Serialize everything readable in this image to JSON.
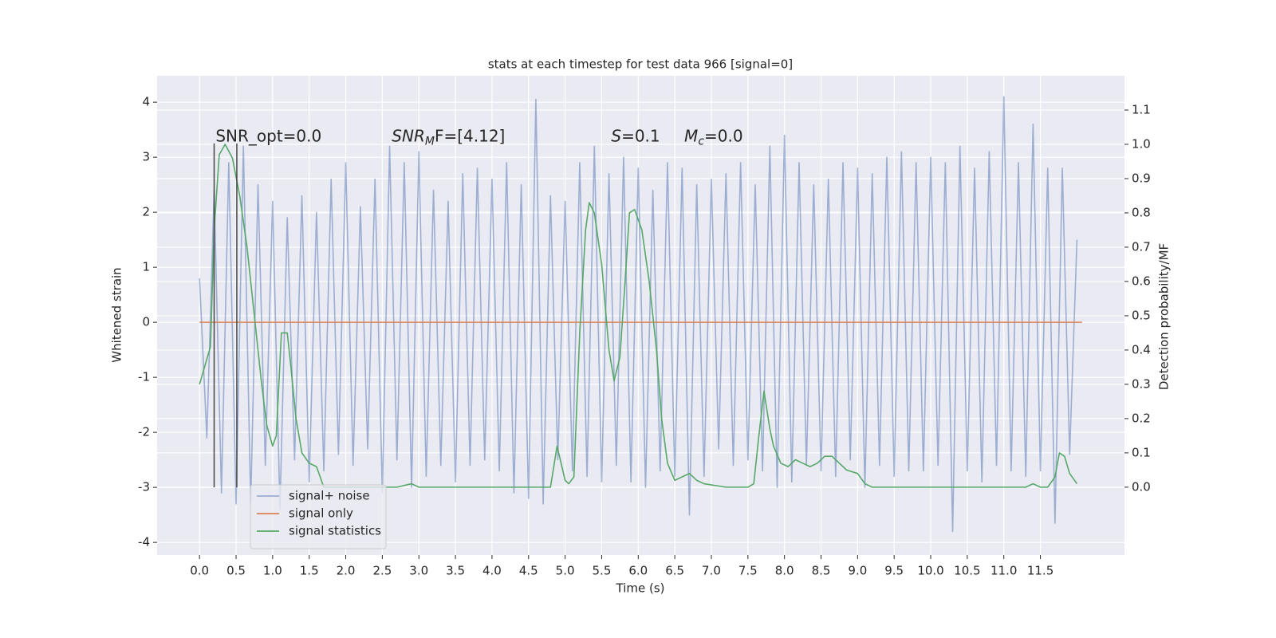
{
  "chart_data": {
    "type": "line",
    "title": "stats at each timestep for test data 966 [signal=0]",
    "xlabel": "Time (s)",
    "ylabel": "Whitened strain",
    "y2label": "Detection probability/MF",
    "xlim": [
      -0.58,
      12.65
    ],
    "ylim": [
      -4.23,
      4.48
    ],
    "y2lim": [
      -0.198,
      1.2
    ],
    "xticks": [
      {
        "value": 0,
        "label": "0.0"
      },
      {
        "value": 0.5,
        "label": "0.5"
      },
      {
        "value": 1,
        "label": "1.0"
      },
      {
        "value": 1.5,
        "label": "1.5"
      },
      {
        "value": 2,
        "label": "2.0"
      },
      {
        "value": 2.5,
        "label": "2.5"
      },
      {
        "value": 3,
        "label": "3.0"
      },
      {
        "value": 3.5,
        "label": "3.5"
      },
      {
        "value": 4,
        "label": "4.0"
      },
      {
        "value": 4.5,
        "label": "4.5"
      },
      {
        "value": 5,
        "label": "5.0"
      },
      {
        "value": 5.5,
        "label": "5.5"
      },
      {
        "value": 6,
        "label": "6.0"
      },
      {
        "value": 6.5,
        "label": "6.5"
      },
      {
        "value": 7,
        "label": "7.0"
      },
      {
        "value": 7.5,
        "label": "7.5"
      },
      {
        "value": 8,
        "label": "8.0"
      },
      {
        "value": 8.5,
        "label": "8.5"
      },
      {
        "value": 9,
        "label": "9.0"
      },
      {
        "value": 9.5,
        "label": "9.5"
      },
      {
        "value": 10,
        "label": "10.0"
      },
      {
        "value": 10.5,
        "label": "10.5"
      },
      {
        "value": 11,
        "label": "11.0"
      },
      {
        "value": 11.5,
        "label": "11.5"
      }
    ],
    "yticks": [
      -4,
      -3,
      -2,
      -1,
      0,
      1,
      2,
      3,
      4
    ],
    "y2ticks": [
      {
        "value": 0,
        "label": "0.0"
      },
      {
        "value": 0.1,
        "label": "0.1"
      },
      {
        "value": 0.2,
        "label": "0.2"
      },
      {
        "value": 0.3,
        "label": "0.3"
      },
      {
        "value": 0.4,
        "label": "0.4"
      },
      {
        "value": 0.5,
        "label": "0.5"
      },
      {
        "value": 0.6,
        "label": "0.6"
      },
      {
        "value": 0.7,
        "label": "0.7"
      },
      {
        "value": 0.8,
        "label": "0.8"
      },
      {
        "value": 0.9,
        "label": "0.9"
      },
      {
        "value": 1,
        "label": "1.0"
      },
      {
        "value": 1.1,
        "label": "1.1"
      }
    ],
    "grid": true,
    "legend": "lower left",
    "series": [
      {
        "name": "signal+ noise",
        "color": "#4c72b0",
        "opacity": 0.5,
        "x": [
          0,
          0.1,
          0.2,
          0.3,
          0.4,
          0.5,
          0.6,
          0.7,
          0.8,
          0.9,
          1,
          1.1,
          1.2,
          1.3,
          1.4,
          1.5,
          1.6,
          1.7,
          1.8,
          1.9,
          2,
          2.1,
          2.2,
          2.3,
          2.4,
          2.5,
          2.6,
          2.7,
          2.8,
          2.9,
          3,
          3.1,
          3.2,
          3.3,
          3.4,
          3.5,
          3.6,
          3.7,
          3.8,
          3.9,
          4,
          4.1,
          4.2,
          4.3,
          4.4,
          4.5,
          4.6,
          4.7,
          4.8,
          4.9,
          5,
          5.1,
          5.2,
          5.3,
          5.4,
          5.5,
          5.6,
          5.7,
          5.8,
          5.9,
          6,
          6.1,
          6.2,
          6.3,
          6.4,
          6.5,
          6.6,
          6.7,
          6.8,
          6.9,
          7,
          7.1,
          7.2,
          7.3,
          7.4,
          7.5,
          7.6,
          7.7,
          7.8,
          7.9,
          8,
          8.1,
          8.2,
          8.3,
          8.4,
          8.5,
          8.6,
          8.7,
          8.8,
          8.9,
          9,
          9.1,
          9.2,
          9.3,
          9.4,
          9.5,
          9.6,
          9.7,
          9.8,
          9.9,
          10,
          10.1,
          10.2,
          10.3,
          10.4,
          10.5,
          10.6,
          10.7,
          10.8,
          10.9,
          11,
          11.1,
          11.2,
          11.3,
          11.4,
          11.5,
          11.6,
          11.7,
          11.8,
          11.9,
          12
        ],
        "values": [
          0.8,
          -2.1,
          2.4,
          -3.1,
          2.9,
          -3.3,
          3.2,
          -3.3,
          2.5,
          -2.6,
          2.2,
          -3.4,
          1.9,
          -2.5,
          2.3,
          -2.9,
          2.0,
          -2.7,
          2.6,
          -2.4,
          2.9,
          -2.6,
          2.1,
          -2.3,
          2.6,
          -3.1,
          3.2,
          -2.5,
          2.9,
          -3.0,
          3.1,
          -2.8,
          2.4,
          -2.6,
          2.2,
          -2.9,
          2.7,
          -2.6,
          2.8,
          -2.5,
          2.6,
          -2.7,
          2.9,
          -3.1,
          2.5,
          -3.2,
          4.05,
          -3.3,
          2.3,
          -2.5,
          2.2,
          -2.7,
          2.9,
          -2.8,
          3.2,
          -2.9,
          2.7,
          -2.6,
          3.0,
          -2.9,
          2.8,
          -3.0,
          2.4,
          -2.7,
          2.9,
          -2.8,
          2.8,
          -3.5,
          2.5,
          -2.8,
          2.6,
          -2.3,
          2.7,
          -2.6,
          2.9,
          -2.5,
          2.5,
          -2.7,
          3.2,
          -3.0,
          3.4,
          -2.9,
          2.9,
          -2.6,
          2.5,
          -2.7,
          2.6,
          -2.8,
          2.9,
          -2.5,
          2.8,
          -3.0,
          2.7,
          -2.6,
          3.0,
          -2.8,
          3.1,
          -2.7,
          2.9,
          -2.7,
          3.0,
          -2.6,
          2.9,
          -3.8,
          3.2,
          -2.7,
          2.8,
          -2.9,
          3.1,
          -2.6,
          4.1,
          -2.7,
          2.9,
          -2.8,
          3.6,
          -2.7,
          2.8,
          -3.65,
          2.8,
          -2.4,
          1.5
        ]
      },
      {
        "name": "signal only",
        "color": "#dd8452",
        "opacity": 1,
        "x": [
          0,
          12.07
        ],
        "values": [
          0,
          0
        ]
      },
      {
        "name": "signal statistics",
        "color": "#55a868",
        "opacity": 1,
        "axis": "y2",
        "x": [
          0,
          0.15,
          0.2,
          0.27,
          0.35,
          0.45,
          0.55,
          0.65,
          0.75,
          0.85,
          0.92,
          1,
          1.05,
          1.12,
          1.2,
          1.25,
          1.32,
          1.4,
          1.5,
          1.6,
          1.7,
          2,
          2.7,
          2.9,
          3,
          4,
          4.4,
          4.6,
          4.8,
          4.89,
          5,
          5.05,
          5.12,
          5.2,
          5.28,
          5.33,
          5.4,
          5.5,
          5.6,
          5.67,
          5.75,
          5.82,
          5.88,
          5.95,
          6.05,
          6.15,
          6.25,
          6.32,
          6.4,
          6.5,
          6.6,
          6.7,
          6.8,
          6.9,
          7.2,
          7.5,
          7.58,
          7.65,
          7.72,
          7.8,
          7.85,
          7.95,
          8.05,
          8.15,
          8.25,
          8.35,
          8.45,
          8.55,
          8.65,
          8.75,
          8.85,
          9,
          9.1,
          9.2,
          11.3,
          11.4,
          11.5,
          11.6,
          11.7,
          11.76,
          11.83,
          11.9,
          12
        ],
        "values": [
          0.3,
          0.41,
          0.75,
          0.97,
          1.0,
          0.96,
          0.85,
          0.7,
          0.5,
          0.3,
          0.18,
          0.12,
          0.15,
          0.45,
          0.45,
          0.35,
          0.2,
          0.1,
          0.07,
          0.06,
          0.0,
          0.0,
          0.0,
          0.01,
          0.0,
          0.0,
          0.0,
          0.0,
          0.0,
          0.12,
          0.02,
          0.01,
          0.03,
          0.45,
          0.75,
          0.83,
          0.8,
          0.65,
          0.4,
          0.31,
          0.38,
          0.6,
          0.8,
          0.81,
          0.75,
          0.6,
          0.4,
          0.2,
          0.07,
          0.02,
          0.03,
          0.04,
          0.02,
          0.01,
          0.0,
          0.0,
          0.01,
          0.15,
          0.28,
          0.17,
          0.12,
          0.07,
          0.06,
          0.08,
          0.07,
          0.06,
          0.07,
          0.09,
          0.09,
          0.07,
          0.05,
          0.04,
          0.01,
          0.0,
          0.0,
          0.01,
          0.0,
          0.0,
          0.03,
          0.1,
          0.09,
          0.04,
          0.01
        ]
      }
    ],
    "vlines": [
      {
        "x": 0.2,
        "ymin": -3,
        "ymax": 3.25
      },
      {
        "x": 0.51,
        "ymin": -3,
        "ymax": 3.25
      }
    ],
    "annotations": [
      {
        "x": 0.22,
        "y": 3.2,
        "parts": [
          {
            "t": "SNR_opt=0.0"
          }
        ]
      },
      {
        "x": 2.63,
        "y": 3.2,
        "parts": [
          {
            "t": "SNR",
            "style": "italic"
          },
          {
            "t": "M",
            "style": "sub"
          },
          {
            "t": "F=[4.12]"
          }
        ]
      },
      {
        "x": 5.63,
        "y": 3.2,
        "parts": [
          {
            "t": "S",
            "style": "italic"
          },
          {
            "t": "=0.1"
          }
        ]
      },
      {
        "x": 6.63,
        "y": 3.2,
        "parts": [
          {
            "t": "M",
            "style": "italic"
          },
          {
            "t": "c",
            "style": "sub"
          },
          {
            "t": "=0.0"
          }
        ]
      }
    ]
  }
}
